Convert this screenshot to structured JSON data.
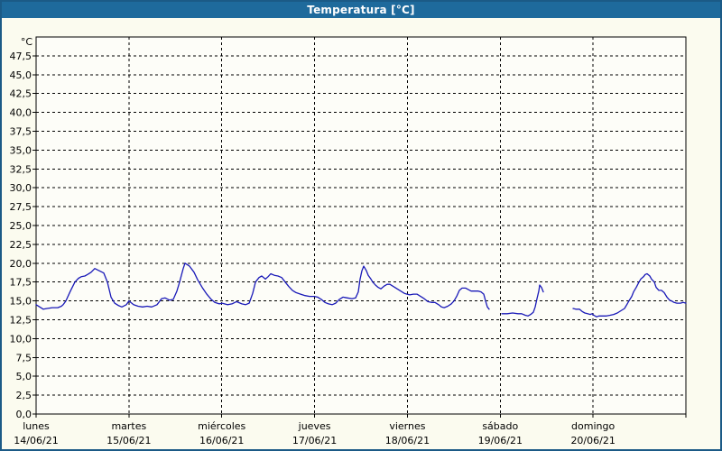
{
  "window": {
    "title": "Temperatura [°C]"
  },
  "colors": {
    "titlebar_bg": "#1e6a9c",
    "titlebar_text": "#ffffff",
    "frame_border": "#1b5a86",
    "page_bg": "#fbfbef",
    "plot_bg": "#fdfdf8",
    "grid": "#000000",
    "axis": "#000000",
    "line": "#1a1ab8"
  },
  "chart_data": {
    "type": "line",
    "title": "Temperatura [°C]",
    "y_unit": "°C",
    "ylim": [
      0,
      50
    ],
    "ytick_step": 2.5,
    "ytick_labels": [
      "0,0",
      "2,5",
      "5,0",
      "7,5",
      "10,0",
      "12,5",
      "15,0",
      "17,5",
      "20,0",
      "22,5",
      "25,0",
      "27,5",
      "30,0",
      "32,5",
      "35,0",
      "37,5",
      "40,0",
      "42,5",
      "45,0",
      "47,5"
    ],
    "grid_style": "dashed",
    "legend": "none",
    "x_axis": {
      "days": [
        {
          "name": "lunes",
          "date": "14/06/21"
        },
        {
          "name": "martes",
          "date": "15/06/21"
        },
        {
          "name": "miércoles",
          "date": "16/06/21"
        },
        {
          "name": "jueves",
          "date": "17/06/21"
        },
        {
          "name": "viernes",
          "date": "18/06/21"
        },
        {
          "name": "sábado",
          "date": "19/06/21"
        },
        {
          "name": "domingo",
          "date": "20/06/21"
        }
      ]
    },
    "series": [
      {
        "name": "Temperatura",
        "color": "#1a1ab8",
        "x_units": "days_from_start",
        "segments": [
          [
            [
              0.0,
              14.5
            ],
            [
              0.039,
              14.2
            ],
            [
              0.078,
              13.9
            ],
            [
              0.117,
              14.0
            ],
            [
              0.175,
              14.1
            ],
            [
              0.233,
              14.1
            ],
            [
              0.272,
              14.3
            ],
            [
              0.292,
              14.5
            ],
            [
              0.321,
              15.0
            ],
            [
              0.369,
              16.3
            ],
            [
              0.418,
              17.5
            ],
            [
              0.457,
              18.0
            ],
            [
              0.486,
              18.2
            ],
            [
              0.525,
              18.3
            ],
            [
              0.554,
              18.5
            ],
            [
              0.593,
              18.8
            ],
            [
              0.632,
              19.3
            ],
            [
              0.681,
              19.0
            ],
            [
              0.729,
              18.7
            ],
            [
              0.768,
              17.5
            ],
            [
              0.807,
              15.5
            ],
            [
              0.846,
              14.7
            ],
            [
              0.885,
              14.4
            ],
            [
              0.924,
              14.2
            ],
            [
              0.972,
              14.5
            ],
            [
              1.0,
              15.0
            ],
            [
              1.05,
              14.5
            ],
            [
              1.099,
              14.3
            ],
            [
              1.147,
              14.2
            ],
            [
              1.196,
              14.3
            ],
            [
              1.244,
              14.2
            ],
            [
              1.303,
              14.5
            ],
            [
              1.351,
              15.3
            ],
            [
              1.39,
              15.4
            ],
            [
              1.439,
              15.1
            ],
            [
              1.478,
              15.2
            ],
            [
              1.517,
              16.3
            ],
            [
              1.546,
              17.5
            ],
            [
              1.585,
              19.3
            ],
            [
              1.604,
              20.0
            ],
            [
              1.653,
              19.6
            ],
            [
              1.701,
              18.8
            ],
            [
              1.74,
              17.8
            ],
            [
              1.789,
              16.8
            ],
            [
              1.838,
              15.9
            ],
            [
              1.886,
              15.2
            ],
            [
              1.925,
              14.8
            ],
            [
              1.974,
              14.6
            ],
            [
              2.003,
              14.7
            ],
            [
              2.061,
              14.5
            ],
            [
              2.11,
              14.6
            ],
            [
              2.158,
              14.9
            ],
            [
              2.217,
              14.6
            ],
            [
              2.256,
              14.5
            ],
            [
              2.295,
              14.7
            ],
            [
              2.333,
              16.0
            ],
            [
              2.363,
              17.5
            ],
            [
              2.401,
              18.1
            ],
            [
              2.431,
              18.3
            ],
            [
              2.47,
              17.9
            ],
            [
              2.499,
              18.2
            ],
            [
              2.528,
              18.6
            ],
            [
              2.567,
              18.4
            ],
            [
              2.606,
              18.3
            ],
            [
              2.645,
              18.1
            ],
            [
              2.683,
              17.5
            ],
            [
              2.722,
              16.9
            ],
            [
              2.761,
              16.4
            ],
            [
              2.8,
              16.1
            ],
            [
              2.849,
              15.9
            ],
            [
              2.897,
              15.7
            ],
            [
              2.946,
              15.6
            ],
            [
              2.995,
              15.6
            ],
            [
              3.033,
              15.5
            ],
            [
              3.072,
              15.2
            ],
            [
              3.111,
              14.8
            ],
            [
              3.15,
              14.6
            ],
            [
              3.189,
              14.5
            ],
            [
              3.228,
              14.7
            ],
            [
              3.267,
              15.2
            ],
            [
              3.306,
              15.5
            ],
            [
              3.354,
              15.4
            ],
            [
              3.403,
              15.3
            ],
            [
              3.442,
              15.4
            ],
            [
              3.471,
              16.2
            ],
            [
              3.49,
              17.9
            ],
            [
              3.51,
              19.0
            ],
            [
              3.529,
              19.6
            ],
            [
              3.558,
              19.0
            ],
            [
              3.578,
              18.4
            ],
            [
              3.607,
              17.9
            ],
            [
              3.626,
              17.5
            ],
            [
              3.656,
              17.1
            ],
            [
              3.685,
              16.8
            ],
            [
              3.714,
              16.6
            ],
            [
              3.753,
              17.0
            ],
            [
              3.782,
              17.2
            ],
            [
              3.811,
              17.2
            ],
            [
              3.85,
              16.9
            ],
            [
              3.889,
              16.6
            ],
            [
              3.928,
              16.3
            ],
            [
              3.967,
              16.0
            ],
            [
              3.996,
              15.9
            ],
            [
              4.025,
              15.8
            ],
            [
              4.064,
              15.9
            ],
            [
              4.103,
              15.9
            ],
            [
              4.142,
              15.6
            ],
            [
              4.181,
              15.3
            ],
            [
              4.22,
              14.9
            ],
            [
              4.259,
              14.8
            ],
            [
              4.297,
              14.8
            ],
            [
              4.336,
              14.5
            ],
            [
              4.366,
              14.2
            ],
            [
              4.395,
              14.1
            ],
            [
              4.434,
              14.3
            ],
            [
              4.472,
              14.6
            ],
            [
              4.502,
              15.0
            ],
            [
              4.531,
              15.6
            ],
            [
              4.56,
              16.4
            ],
            [
              4.589,
              16.7
            ],
            [
              4.628,
              16.7
            ],
            [
              4.657,
              16.5
            ],
            [
              4.686,
              16.3
            ],
            [
              4.725,
              16.3
            ],
            [
              4.764,
              16.3
            ],
            [
              4.793,
              16.2
            ],
            [
              4.822,
              15.9
            ],
            [
              4.842,
              15.0
            ],
            [
              4.861,
              14.2
            ],
            [
              4.881,
              13.9
            ]
          ],
          [
            [
              5.017,
              13.3
            ],
            [
              5.075,
              13.3
            ],
            [
              5.133,
              13.4
            ],
            [
              5.192,
              13.3
            ],
            [
              5.231,
              13.3
            ],
            [
              5.269,
              13.1
            ],
            [
              5.299,
              13.0
            ],
            [
              5.328,
              13.2
            ],
            [
              5.357,
              13.5
            ],
            [
              5.376,
              14.2
            ],
            [
              5.396,
              15.3
            ],
            [
              5.415,
              16.3
            ],
            [
              5.425,
              17.1
            ],
            [
              5.444,
              16.8
            ],
            [
              5.464,
              16.2
            ]
          ],
          [
            [
              5.785,
              14.0
            ],
            [
              5.814,
              13.9
            ],
            [
              5.853,
              13.9
            ],
            [
              5.882,
              13.6
            ],
            [
              5.911,
              13.4
            ],
            [
              5.94,
              13.3
            ],
            [
              5.969,
              13.2
            ],
            [
              5.989,
              13.3
            ],
            [
              6.008,
              13.1
            ],
            [
              6.037,
              12.9
            ],
            [
              6.066,
              13.0
            ],
            [
              6.105,
              13.0
            ],
            [
              6.144,
              13.0
            ],
            [
              6.183,
              13.1
            ],
            [
              6.222,
              13.2
            ],
            [
              6.261,
              13.4
            ],
            [
              6.3,
              13.7
            ],
            [
              6.339,
              14.0
            ],
            [
              6.368,
              14.6
            ],
            [
              6.387,
              15.0
            ],
            [
              6.417,
              15.6
            ],
            [
              6.436,
              16.2
            ],
            [
              6.465,
              16.8
            ],
            [
              6.494,
              17.5
            ],
            [
              6.514,
              17.9
            ],
            [
              6.543,
              18.2
            ],
            [
              6.562,
              18.5
            ],
            [
              6.582,
              18.6
            ],
            [
              6.611,
              18.3
            ],
            [
              6.63,
              17.9
            ],
            [
              6.66,
              17.5
            ],
            [
              6.679,
              16.8
            ],
            [
              6.708,
              16.4
            ],
            [
              6.737,
              16.4
            ],
            [
              6.766,
              16.1
            ],
            [
              6.796,
              15.5
            ],
            [
              6.825,
              15.1
            ],
            [
              6.844,
              15.0
            ],
            [
              6.873,
              14.8
            ],
            [
              6.903,
              14.7
            ],
            [
              6.941,
              14.7
            ],
            [
              6.971,
              14.8
            ],
            [
              7.0,
              14.7
            ]
          ]
        ]
      }
    ]
  }
}
